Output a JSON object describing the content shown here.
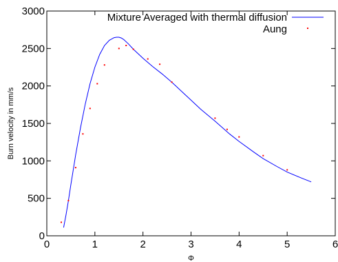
{
  "chart_data": {
    "type": "line",
    "title": "",
    "xlabel": "Φ",
    "ylabel": "Burn velocity in mm/s",
    "xlim": [
      0,
      6
    ],
    "ylim": [
      0,
      3000
    ],
    "x_ticks": [
      "0",
      "1",
      "2",
      "3",
      "4",
      "5",
      "6"
    ],
    "y_ticks": [
      "0",
      "500",
      "1000",
      "1500",
      "2000",
      "2500",
      "3000"
    ],
    "grid": false,
    "legend_position": "top-right",
    "series": [
      {
        "name": "Mixture Averaged with thermal diffusion",
        "kind": "line",
        "color": "#0000ff",
        "x": [
          0.35,
          0.4,
          0.45,
          0.5,
          0.55,
          0.6,
          0.7,
          0.8,
          0.9,
          1.0,
          1.1,
          1.2,
          1.3,
          1.4,
          1.45,
          1.5,
          1.55,
          1.6,
          1.7,
          1.8,
          2.0,
          2.2,
          2.4,
          2.6,
          2.8,
          3.0,
          3.2,
          3.5,
          3.8,
          4.0,
          4.3,
          4.5,
          4.8,
          5.0,
          5.3,
          5.5
        ],
        "y": [
          110,
          280,
          470,
          680,
          880,
          1080,
          1440,
          1760,
          2030,
          2250,
          2420,
          2540,
          2610,
          2645,
          2650,
          2650,
          2640,
          2620,
          2560,
          2490,
          2370,
          2260,
          2160,
          2050,
          1930,
          1810,
          1690,
          1530,
          1360,
          1260,
          1120,
          1030,
          920,
          850,
          770,
          720
        ]
      },
      {
        "name": "Aung",
        "kind": "scatter",
        "color": "#ff0000",
        "x": [
          0.3,
          0.45,
          0.6,
          0.75,
          0.9,
          1.05,
          1.2,
          1.5,
          1.65,
          1.8,
          2.1,
          2.35,
          2.6,
          3.5,
          3.75,
          4.0,
          4.5,
          5.0
        ],
        "y": [
          180,
          470,
          910,
          1360,
          1700,
          2030,
          2280,
          2500,
          2540,
          2490,
          2360,
          2290,
          2050,
          1570,
          1420,
          1320,
          1070,
          880
        ]
      }
    ]
  }
}
